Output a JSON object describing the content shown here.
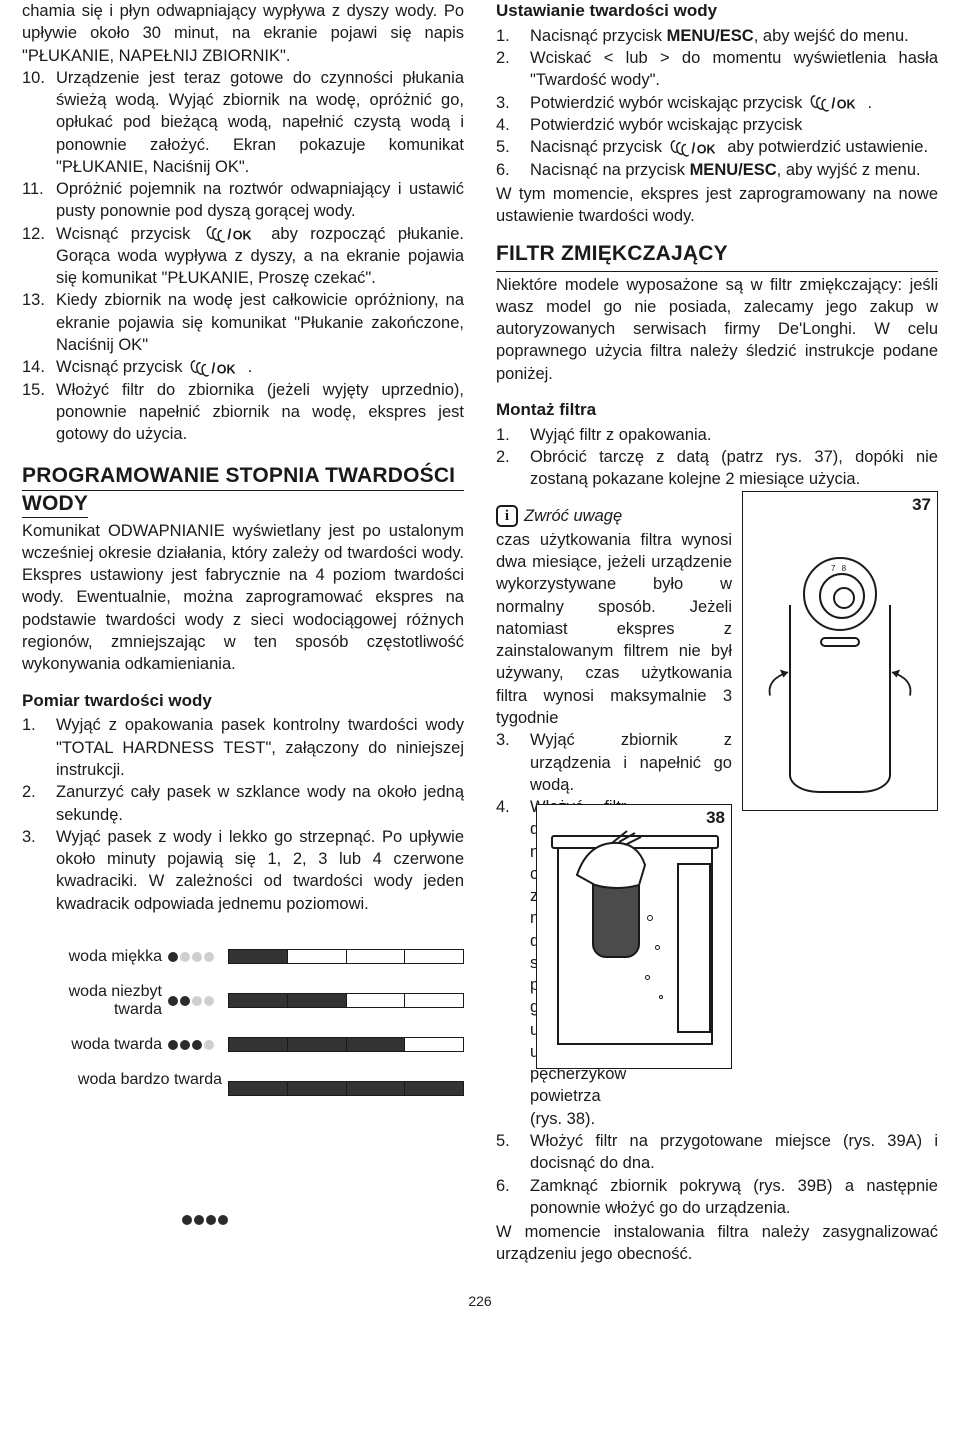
{
  "page_number": "226",
  "left": {
    "intro_para": "chamia się i płyn odwapniający wypływa z dyszy wody. Po upływie około 30 minut, na ekranie pojawi się napis \"PŁUKANIE, NAPEŁNIJ ZBIORNIK\".",
    "steps": [
      {
        "n": "10.",
        "t": "Urządzenie jest teraz gotowe do czynności płukania świeżą wodą. Wyjąć zbiornik na wodę, opróżnić go, opłukać pod bieżącą wodą, napełnić czystą wodą i ponownie założyć. Ekran pokazuje komunikat \"PŁUKANIE, Naciśnij OK\"."
      },
      {
        "n": "11.",
        "t": "Opróżnić pojemnik na roztwór odwapniający i ustawić pusty ponownie pod dyszą gorącej wody."
      },
      {
        "n": "12.",
        "pre": "Wcisnąć  przycisk ",
        "post": " aby  rozpocząć  płukanie. Gorąca woda wypływa z dyszy, a na ekranie pojawia się komunikat \"PŁUKANIE, Proszę czekać\"."
      },
      {
        "n": "13.",
        "t": "Kiedy zbiornik na wodę jest całkowicie opróżniony, na ekranie pojawia się komunikat \"Płukanie zakończone, Naciśnij OK\""
      },
      {
        "n": "14.",
        "pre": "Wcisnąć przycisk ",
        "post": " ."
      },
      {
        "n": "15.",
        "t": "Włożyć filtr do zbiornika (jeżeli wyjęty uprzednio), ponownie napełnić zbiornik na wodę, ekspres jest gotowy do użycia."
      }
    ],
    "h2_prog_l1": "PROGRAMOWANIE STOPNIA TWARDOŚCI",
    "h2_prog_l2": "WODY",
    "prog_para": "Komunikat ODWAPNIANIE wyświetlany jest po ustalonym wcześniej okresie działania, który zależy od twardości wody. Ekspres ustawiony jest fabrycznie na 4 poziom twardości wody. Ewentualnie, można zaprogramować ekspres na podstawie twardości wody z sieci wodociągowej różnych regionów, zmniejszając w ten sposób częstotliwość wykonywania odkamieniania.",
    "h3_pomiar": "Pomiar twardości wody",
    "pomiar_steps": [
      {
        "n": "1.",
        "t": "Wyjąć z opakowania pasek kontrolny twardości wody \"TOTAL HARDNESS TEST\", załączony do niniejszej instrukcji."
      },
      {
        "n": "2.",
        "t": "Zanurzyć cały pasek w szklance wody na około jedną sekundę."
      },
      {
        "n": "3.",
        "t": "Wyjąć pasek z wody i lekko go strzepnąć. Po upływie około minuty pojawią się 1, 2, 3 lub 4 czerwone kwadraciki. W zależności od twardości wody jeden kwadracik odpowiada jednemu poziomowi."
      }
    ],
    "hardness": [
      {
        "label": "woda miękka",
        "dots": 1,
        "fill": 1
      },
      {
        "label": "woda niezbyt twarda",
        "dots": 2,
        "fill": 2
      },
      {
        "label": "woda twarda",
        "dots": 3,
        "fill": 3
      },
      {
        "label": "woda bardzo twarda",
        "dots": 4,
        "fill": 4
      }
    ]
  },
  "right": {
    "h3_ust": "Ustawianie twardości wody",
    "ust_steps": [
      {
        "n": "1.",
        "parts": [
          "Nacisnąć przycisk ",
          "MENU/ESC",
          ", aby wejść do menu."
        ]
      },
      {
        "n": "2.",
        "t": "Wciskać < lub > do momentu wyświetlenia hasła \"Twardość wody\"."
      },
      {
        "n": "3.",
        "pre": "Potwierdzić wybór wciskając przycisk ",
        "post": " ."
      },
      {
        "n": "4.",
        "t": "Potwierdzić wybór wciskając przycisk"
      },
      {
        "n": "5.",
        "pre": "Nacisnąć przycisk ",
        "post": " aby potwierdzić ustawienie."
      },
      {
        "n": "6.",
        "parts": [
          "Nacisnąć na przycisk ",
          "MENU/ESC",
          ", aby wyjść z menu."
        ]
      }
    ],
    "ust_outro": "W tym momencie, ekspres jest zaprogramowany na nowe ustawienie twardości wody.",
    "h2_filtr": "FILTR ZMIĘKCZAJĄCY",
    "filtr_para": "Niektóre modele wyposażone są w filtr zmiękczający: jeśli wasz model go nie posiada, zalecamy jego zakup w autoryzowanych serwisach firmy De'Longhi. W celu poprawnego użycia filtra należy śledzić instrukcje podane poniżej.",
    "h3_montaz": "Montaż filtra",
    "montaz12": [
      {
        "n": "1.",
        "t": "Wyjąć filtr z opakowania."
      },
      {
        "n": "2.",
        "t": "Obrócić tarczę z datą (patrz rys. 37), dopóki nie zostaną pokazane kolejne 2 miesiące użycia."
      }
    ],
    "note_label": "Zwróć uwagę",
    "note_text": "czas użytkowania filtra wynosi dwa miesiące, jeżeli urządzenie wykorzystywane było w normalny sposób. Jeżeli natomiast ekspres z zainstalowanym filtrem nie był używany, czas użytkowania filtra wynosi maksymalnie 3 tygodnie",
    "montaz34": [
      {
        "n": "3.",
        "t": "Wyjąć zbiornik z urządzenia i napełnić go wodą."
      },
      {
        "n": "4.",
        "t": "Włożyć filtr do zbiornika na wodę i całkowicie zanurzyć go na około dziesięć sekund, pochylając go, co umożliwi ujście pęcherzyków powietrza (rys. 38)."
      }
    ],
    "montaz56": [
      {
        "n": "5.",
        "t": "Włożyć filtr na przygotowane miejsce (rys. 39A) i docisnąć do dna."
      },
      {
        "n": "6.",
        "t": "Zamknąć zbiornik pokrywą (rys. 39B) a następnie ponownie włożyć go do urządzenia."
      }
    ],
    "outro2": "W momencie instalowania filtra należy zasygnalizować urządzeniu jego obecność.",
    "fig37": "37",
    "fig38": "38",
    "fig37_dialnums": "7 8"
  },
  "colors": {
    "text": "#1a1a1a",
    "dot_on": "#2b2b2b",
    "dot_off": "#cfcfcf",
    "seg_fill": "#333333"
  }
}
